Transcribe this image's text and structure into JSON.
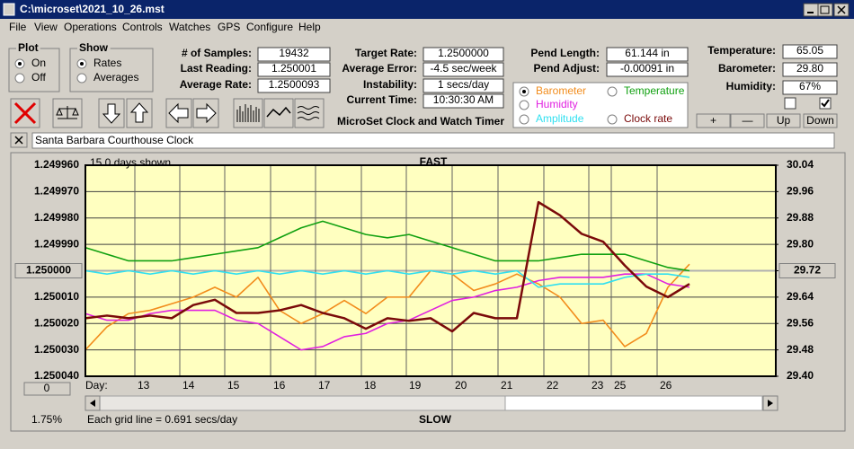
{
  "window": {
    "title": "C:\\microset\\2021_10_26.mst"
  },
  "menu": [
    "File",
    "View",
    "Operations",
    "Controls",
    "Watches",
    "GPS",
    "Configure",
    "Help"
  ],
  "plot_group": {
    "title": "Plot",
    "options": [
      "On",
      "Off"
    ],
    "selected": "On"
  },
  "show_group": {
    "title": "Show",
    "options": [
      "Rates",
      "Averages"
    ],
    "selected": "Rates"
  },
  "fields": [
    {
      "label": "# of Samples:",
      "value": "19432"
    },
    {
      "label": "Last Reading:",
      "value": "1.250001"
    },
    {
      "label": "Average Rate:",
      "value": "1.2500093"
    },
    {
      "label": "Target Rate:",
      "value": "1.2500000"
    },
    {
      "label": "Average Error:",
      "value": "-4.5 sec/week"
    },
    {
      "label": "Instability:",
      "value": "1 secs/day"
    },
    {
      "label": "Current Time:",
      "value": "10:30:30 AM"
    },
    {
      "label": "Pend Length:",
      "value": "61.144 in"
    },
    {
      "label": "Pend Adjust:",
      "value": "-0.00091 in"
    },
    {
      "label": "Temperature:",
      "value": "65.05"
    },
    {
      "label": "Barometer:",
      "value": "29.80"
    },
    {
      "label": "Humidity:",
      "value": "67%"
    }
  ],
  "app_title": "MicroSet Clock and Watch Timer",
  "checkboxes": [
    false,
    true
  ],
  "adjust_buttons": [
    "+",
    "—",
    "Up",
    "Down"
  ],
  "clock_name": "Santa Barbara Courthouse Clock",
  "chart_data": {
    "type": "line",
    "top_label": "FAST",
    "bottom_label": "SLOW",
    "days_shown": "15.0 days shown",
    "x_label": "Day:",
    "days": [
      "13",
      "14",
      "15",
      "16",
      "17",
      "18",
      "19",
      "20",
      "21",
      "22",
      "23",
      "25",
      "26"
    ],
    "grid_note": "Each grid line = 0.691 secs/day",
    "zoom_button": "0",
    "percent_label": "1.75%",
    "selected_series": "Barometer",
    "y_inverted": true,
    "ylim": [
      1.24996,
      1.25004
    ],
    "yticks": [
      {
        "value": 1.24996,
        "label": "1.249960"
      },
      {
        "value": 1.24997,
        "label": "1.249970"
      },
      {
        "value": 1.24998,
        "label": "1.249980"
      },
      {
        "value": 1.24999,
        "label": "1.249990"
      },
      {
        "value": 1.25,
        "label": "1.250000"
      },
      {
        "value": 1.25001,
        "label": "1.250010"
      },
      {
        "value": 1.25002,
        "label": "1.250020"
      },
      {
        "value": 1.25003,
        "label": "1.250030"
      },
      {
        "value": 1.25004,
        "label": "1.250040"
      }
    ],
    "y2lim": [
      29.4,
      30.04
    ],
    "y2ticks": [
      30.04,
      29.96,
      29.88,
      {
        "value": 29.8,
        "label": "29.80"
      },
      29.72,
      29.64,
      29.56,
      29.48,
      {
        "value": 29.4,
        "label": "29.40"
      }
    ],
    "grid": true,
    "series": [
      {
        "name": "Barometer",
        "color": "#f28c1c",
        "axis": "y2",
        "values": [
          29.48,
          29.55,
          29.59,
          29.6,
          29.62,
          29.64,
          29.67,
          29.64,
          29.7,
          29.6,
          29.56,
          29.59,
          29.63,
          29.59,
          29.64,
          29.64,
          29.72,
          29.71,
          29.66,
          29.68,
          29.71,
          29.68,
          29.64,
          29.56,
          29.57,
          29.49,
          29.53,
          29.67,
          29.74
        ]
      },
      {
        "name": "Temperature",
        "color": "#10a010",
        "axis": "y2",
        "values": [
          29.79,
          29.77,
          29.75,
          29.75,
          29.75,
          29.76,
          29.77,
          29.78,
          29.79,
          29.82,
          29.85,
          29.87,
          29.85,
          29.83,
          29.82,
          29.83,
          29.81,
          29.79,
          29.77,
          29.75,
          29.75,
          29.75,
          29.76,
          29.77,
          29.77,
          29.77,
          29.75,
          29.73,
          29.72
        ]
      },
      {
        "name": "Humidity",
        "color": "#e020e0",
        "axis": "y2",
        "values": [
          29.59,
          29.57,
          29.57,
          29.59,
          29.6,
          29.6,
          29.6,
          29.57,
          29.56,
          29.52,
          29.48,
          29.49,
          29.52,
          29.53,
          29.56,
          29.57,
          29.6,
          29.63,
          29.64,
          29.66,
          29.67,
          29.69,
          29.7,
          29.7,
          29.7,
          29.71,
          29.71,
          29.68,
          29.67
        ]
      },
      {
        "name": "Amplitude",
        "color": "#30e0f0",
        "axis": "y2",
        "values": [
          29.72,
          29.71,
          29.72,
          29.71,
          29.72,
          29.71,
          29.72,
          29.71,
          29.72,
          29.71,
          29.72,
          29.71,
          29.72,
          29.71,
          29.72,
          29.71,
          29.72,
          29.71,
          29.72,
          29.71,
          29.72,
          29.67,
          29.68,
          29.68,
          29.68,
          29.7,
          29.71,
          29.71,
          29.7
        ]
      },
      {
        "name": "Clock rate",
        "color": "#7a0a0a",
        "axis": "y",
        "values": [
          1.250018,
          1.250017,
          1.250018,
          1.250017,
          1.250018,
          1.250013,
          1.250011,
          1.250016,
          1.250016,
          1.250015,
          1.250013,
          1.250016,
          1.250018,
          1.250022,
          1.250018,
          1.250019,
          1.250018,
          1.250023,
          1.250016,
          1.250018,
          1.250018,
          1.249974,
          1.249979,
          1.249986,
          1.249989,
          1.249998,
          1.250006,
          1.25001,
          1.250005
        ]
      }
    ]
  }
}
